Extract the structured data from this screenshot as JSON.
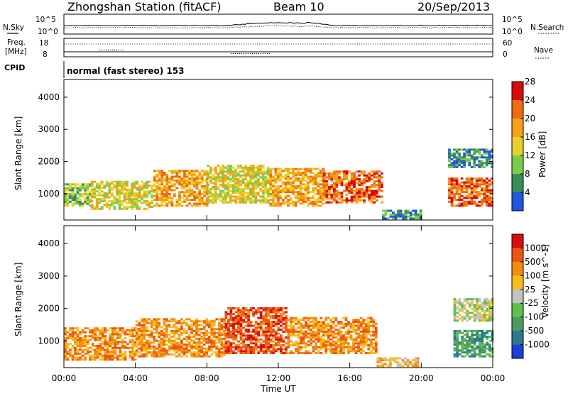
{
  "header": {
    "station": "Zhongshan Station (fitACF)",
    "beam": "Beam 10",
    "date": "20/Sep/2013"
  },
  "top_panels": {
    "nsky_label": "N.Sky",
    "nsearch_label": "N.Search",
    "freq_label_1": "Freq.",
    "freq_label_2": "[MHz]",
    "nave_label": "Nave",
    "cpid_label": "CPID",
    "cpid_text": "normal (fast stereo) 153",
    "noise_ticks_left": [
      "10^5",
      "10^0"
    ],
    "noise_ticks_right": [
      "10^5",
      "10^0"
    ],
    "freq_ticks_left": [
      "18",
      "8"
    ],
    "freq_ticks_right": [
      "60",
      "0"
    ]
  },
  "colors": {
    "power": [
      "#2255e0",
      "#3a8c5a",
      "#7ccc4a",
      "#e8d22a",
      "#f7a018",
      "#f06a10",
      "#d80a0a"
    ],
    "velocity": [
      "#1b3fd8",
      "#2a7a8c",
      "#4f9a62",
      "#60c04a",
      "#c4c4c4",
      "#f7bd1c",
      "#f48c12",
      "#ee5512",
      "#dd0c0c"
    ],
    "groundscatter": "#bdbdbd"
  },
  "chart_data": [
    {
      "type": "heatmap",
      "name": "power",
      "ylabel": "Slant Range [km]",
      "xlabel": "Time UT",
      "x_ticks": [
        "00:00",
        "04:00",
        "08:00",
        "12:00",
        "16:00",
        "20:00",
        "00:00"
      ],
      "y_ticks": [
        "1000",
        "2000",
        "3000",
        "4000"
      ],
      "colorbar_label": "Power [dB]",
      "colorbar_ticks": [
        "4",
        "8",
        "12",
        "16",
        "20",
        "24",
        "28"
      ],
      "xlim": [
        0,
        24
      ],
      "ylim": [
        180,
        4550
      ],
      "regions": [
        {
          "t0": 0.0,
          "t1": 1.5,
          "r0": 600,
          "r1": 1300,
          "level": 2
        },
        {
          "t0": 1.5,
          "t1": 5.0,
          "r0": 500,
          "r1": 1400,
          "level": 3
        },
        {
          "t0": 5.0,
          "t1": 8.0,
          "r0": 600,
          "r1": 1700,
          "level": 4
        },
        {
          "t0": 8.0,
          "t1": 11.5,
          "r0": 700,
          "r1": 1900,
          "level": 3
        },
        {
          "t0": 11.5,
          "t1": 14.5,
          "r0": 600,
          "r1": 1800,
          "level": 4
        },
        {
          "t0": 14.5,
          "t1": 17.8,
          "r0": 700,
          "r1": 1700,
          "level": 5
        },
        {
          "t0": 17.8,
          "t1": 20.0,
          "r0": 200,
          "r1": 500,
          "level": 1
        },
        {
          "t0": 21.5,
          "t1": 24.0,
          "r0": 600,
          "r1": 1500,
          "level": 5
        },
        {
          "t0": 21.5,
          "t1": 24.0,
          "r0": 1800,
          "r1": 2400,
          "level": 1
        }
      ]
    },
    {
      "type": "heatmap",
      "name": "velocity",
      "ylabel": "Slant Range [km]",
      "xlabel": "Time UT",
      "x_ticks": [
        "00:00",
        "04:00",
        "08:00",
        "12:00",
        "16:00",
        "20:00",
        "00:00"
      ],
      "y_ticks": [
        "1000",
        "2000",
        "3000",
        "4000"
      ],
      "colorbar_label": "Velocity [m s^-1]",
      "colorbar_ticks": [
        "1000",
        "500",
        "100",
        "25",
        "-25",
        "-100",
        "-500",
        "-1000"
      ],
      "xlim": [
        0,
        24
      ],
      "ylim": [
        180,
        4550
      ],
      "regions": [
        {
          "t0": 0.0,
          "t1": 4.0,
          "r0": 400,
          "r1": 1400,
          "level": 6
        },
        {
          "t0": 4.0,
          "t1": 9.0,
          "r0": 500,
          "r1": 1700,
          "level": 6
        },
        {
          "t0": 9.0,
          "t1": 12.5,
          "r0": 600,
          "r1": 2000,
          "level": 7
        },
        {
          "t0": 12.5,
          "t1": 17.5,
          "r0": 600,
          "r1": 1700,
          "level": 6
        },
        {
          "t0": 17.5,
          "t1": 19.8,
          "r0": 200,
          "r1": 500,
          "level": 5
        },
        {
          "t0": 21.8,
          "t1": 24.0,
          "r0": 500,
          "r1": 1300,
          "level": 2
        },
        {
          "t0": 21.8,
          "t1": 24.0,
          "r0": 1600,
          "r1": 2300,
          "level": 4
        }
      ]
    }
  ]
}
